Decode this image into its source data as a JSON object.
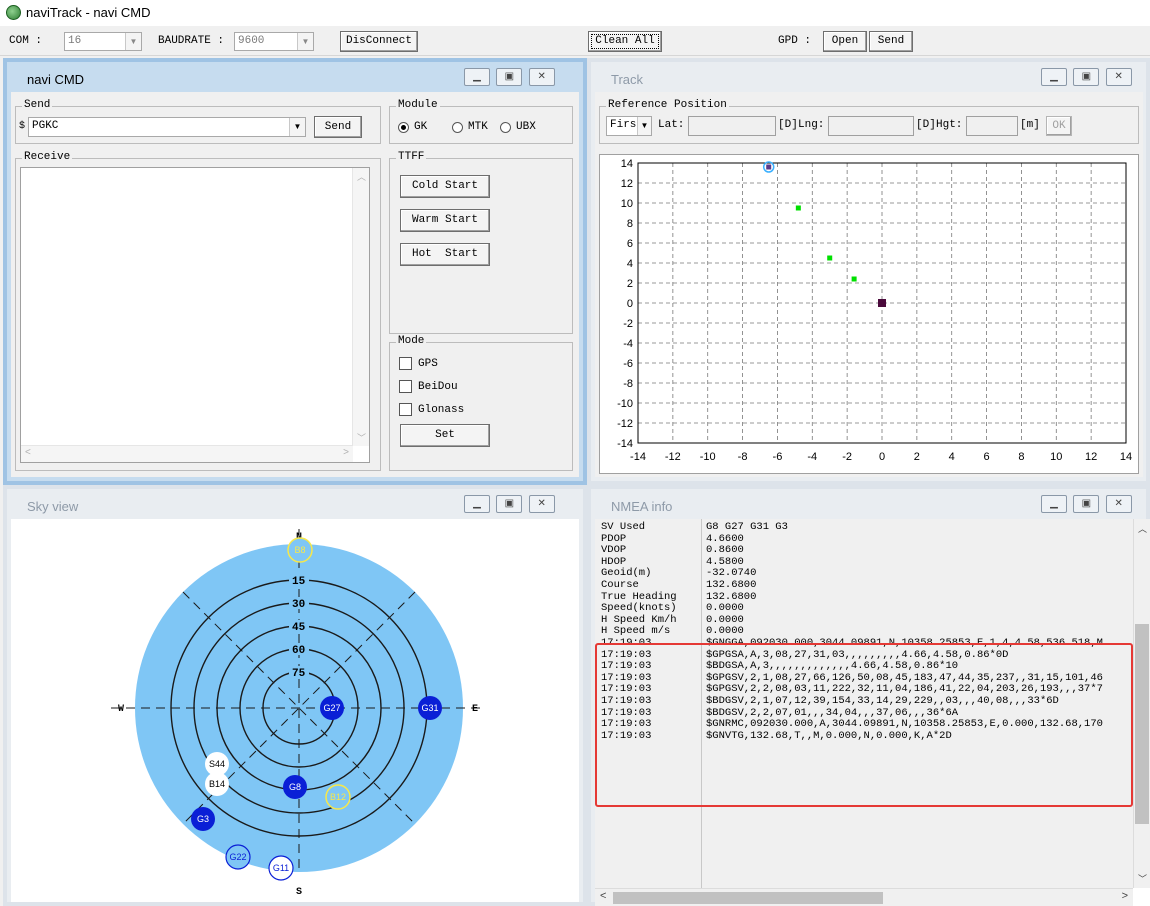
{
  "window_title": "naviTrack - navi CMD",
  "toolbar": {
    "com_label": "COM :",
    "com_value": "16",
    "baud_label": "BAUDRATE :",
    "baud_value": "9600",
    "disconnect_label": "DisConnect",
    "clean_all_label": "Clean All",
    "gpd_label": "GPD :",
    "open_label": "Open",
    "send_label": "Send"
  },
  "navi_cmd": {
    "title": "navi CMD",
    "send_group": "Send",
    "send_prefix": "$",
    "send_value": "PGKC",
    "send_button": "Send",
    "module_group": "Module",
    "module_options": [
      "GK",
      "MTK",
      "UBX"
    ],
    "receive_group": "Receive",
    "ttff_group": "TTFF",
    "cold_start": "Cold Start",
    "warm_start": "Warm Start",
    "hot_start": "Hot  Start",
    "mode_group": "Mode",
    "mode_options": [
      "GPS",
      "BeiDou",
      "Glonass"
    ],
    "set_button": "Set"
  },
  "track": {
    "title": "Track",
    "ref_group": "Reference Position",
    "ref_select": "Firs",
    "lat_label": "Lat:",
    "d1": "[D]",
    "lng_label": "Lng:",
    "d2": "[D]",
    "hgt_label": "Hgt:",
    "m_label": "[m]",
    "ok_label": "OK"
  },
  "chart_data": {
    "type": "scatter",
    "xlim": [
      -14,
      14
    ],
    "ylim": [
      -14,
      14
    ],
    "x_ticks": [
      -14,
      -12,
      -10,
      -8,
      -6,
      -4,
      -2,
      0,
      2,
      4,
      6,
      8,
      10,
      12,
      14
    ],
    "y_ticks": [
      14,
      12,
      10,
      8,
      6,
      4,
      2,
      0,
      -2,
      -4,
      -6,
      -8,
      -10,
      -12,
      -14
    ],
    "grid": true,
    "points": [
      {
        "x": -6.5,
        "y": 13.6,
        "kind": "current"
      },
      {
        "x": -4.8,
        "y": 9.5,
        "kind": "track"
      },
      {
        "x": -3.0,
        "y": 4.5,
        "kind": "track"
      },
      {
        "x": -1.6,
        "y": 2.4,
        "kind": "track"
      },
      {
        "x": 0,
        "y": 0,
        "kind": "origin"
      }
    ],
    "colors": {
      "track": "#00e000",
      "origin": "#4b0a3c",
      "current": "#3bb0ff"
    }
  },
  "sky_view": {
    "title": "Sky view",
    "compass": {
      "n": "N",
      "s": "S",
      "e": "E",
      "w": "W"
    },
    "ring_labels": [
      "15",
      "30",
      "45",
      "60",
      "75"
    ],
    "satellites": [
      {
        "id": "B8",
        "style": "outline-yellow"
      },
      {
        "id": "G27",
        "style": "used"
      },
      {
        "id": "G31",
        "style": "used"
      },
      {
        "id": "S44",
        "style": "white"
      },
      {
        "id": "B14",
        "style": "white"
      },
      {
        "id": "G8",
        "style": "used"
      },
      {
        "id": "B12",
        "style": "outline-yellow"
      },
      {
        "id": "G3",
        "style": "used"
      },
      {
        "id": "G22",
        "style": "outline-blue"
      },
      {
        "id": "G11",
        "style": "outline-blue"
      }
    ]
  },
  "nmea": {
    "title": "NMEA info",
    "rows": [
      {
        "k": "SV Used",
        "v": "G8 G27 G31 G3"
      },
      {
        "k": "PDOP",
        "v": "4.6600"
      },
      {
        "k": "VDOP",
        "v": "0.8600"
      },
      {
        "k": "HDOP",
        "v": "4.5800"
      },
      {
        "k": "Geoid(m)",
        "v": "-32.0740"
      },
      {
        "k": "Course",
        "v": "132.6800"
      },
      {
        "k": "True Heading",
        "v": "132.6800"
      },
      {
        "k": "Speed(knots)",
        "v": "0.0000"
      },
      {
        "k": "H Speed Km/h",
        "v": "0.0000"
      },
      {
        "k": "H Speed m/s",
        "v": "0.0000"
      },
      {
        "k": "17:19:03",
        "v": "$GNGGA,092030.000,3044.09891,N,10358.25853,E,1,4,4.58,536.518,M"
      },
      {
        "k": "17:19:03",
        "v": "$GPGSA,A,3,08,27,31,03,,,,,,,,,4.66,4.58,0.86*0D"
      },
      {
        "k": "17:19:03",
        "v": "$BDGSA,A,3,,,,,,,,,,,,,4.66,4.58,0.86*10"
      },
      {
        "k": "17:19:03",
        "v": "$GPGSV,2,1,08,27,66,126,50,08,45,183,47,44,35,237,,31,15,101,46"
      },
      {
        "k": "17:19:03",
        "v": "$GPGSV,2,2,08,03,11,222,32,11,04,186,41,22,04,203,26,193,,,37*7"
      },
      {
        "k": "17:19:03",
        "v": "$BDGSV,2,1,07,12,39,154,33,14,29,229,,03,,,40,08,,,33*6D"
      },
      {
        "k": "17:19:03",
        "v": "$BDGSV,2,2,07,01,,,34,04,,,37,06,,,36*6A"
      },
      {
        "k": "17:19:03",
        "v": "$GNRMC,092030.000,A,3044.09891,N,10358.25853,E,0.000,132.68,170"
      },
      {
        "k": "17:19:03",
        "v": "$GNVTG,132.68,T,,M,0.000,N,0.000,K,A*2D"
      }
    ],
    "highlight_color": "#e53935"
  }
}
